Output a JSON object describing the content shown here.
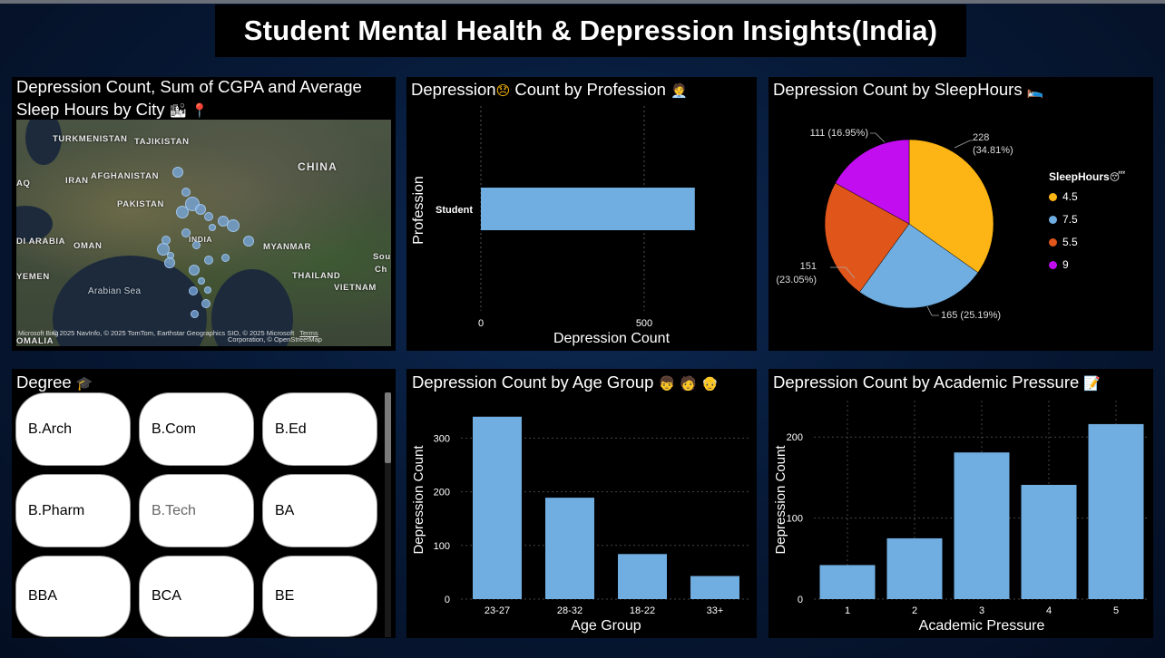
{
  "dashboard": {
    "title": "Student Mental Health & Depression Insights(India)"
  },
  "colors": {
    "bar": "#70ade0",
    "pie": [
      "#fdb515",
      "#70ade0",
      "#e0561a",
      "#c10df0"
    ]
  },
  "map_panel": {
    "title": "Depression Count, Sum of CGPA and Average Sleep Hours by City",
    "icons": [
      "cityscape-icon",
      "pin-icon"
    ],
    "labels": {
      "turkmenistan": "TURKMENISTAN",
      "tajikistan": "TAJIKISTAN",
      "china": "CHINA",
      "afghanistan": "AFGHANISTAN",
      "iraq": "AQ",
      "iran": "IRAN",
      "pakistan": "PAKISTAN",
      "saudi": "DI ARABIA",
      "oman": "OMAN",
      "india": "INDIA",
      "myanmar": "MYANMAR",
      "yemen": "YEMEN",
      "thailand": "THAILAND",
      "arabian_sea": "Arabian Sea",
      "vietnam": "VIETNAM",
      "somalia": "OMALIA",
      "south": "Sou",
      "south2": "Ch"
    },
    "credit_line1": "© 2025 NavInfo, © 2025 TomTom, Earthstar Geographics SIO, © 2025 Microsoft",
    "credit_terms": "Terms",
    "credit_line2": "Corporation, © OpenStreetMap",
    "bing_logo": "Microsoft Bing"
  },
  "profession_panel": {
    "title": "Depression",
    "title_rest": "Count by Profession",
    "icons": [
      "disappointed-face-icon",
      "office-worker-icon"
    ],
    "chart_data": {
      "type": "bar",
      "orientation": "horizontal",
      "categories": [
        "Student"
      ],
      "values": [
        655
      ],
      "xlabel": "Depression Count",
      "ylabel": "Profession",
      "xticks": [
        0,
        500
      ],
      "xlim": [
        0,
        1000
      ]
    }
  },
  "sleep_panel": {
    "title": "Depression Count by SleepHours",
    "icons": [
      "bed-icon"
    ],
    "chart_data": {
      "type": "pie",
      "legend_title": "SleepHours",
      "legend_position": "right",
      "slices": [
        {
          "label": "4.5",
          "value": 228,
          "pct": "(34.81%)"
        },
        {
          "label": "7.5",
          "value": 165,
          "pct": "(25.19%)"
        },
        {
          "label": "5.5",
          "value": 151,
          "pct": "(23.05%)"
        },
        {
          "label": "9",
          "value": 111,
          "pct": "(16.95%)"
        }
      ]
    },
    "labels": {
      "s0_value": "228",
      "s0_pct": "(34.81%)",
      "s1": "165 (25.19%)",
      "s2_value": "151",
      "s2_pct": "(23.05%)",
      "s3": "111 (16.95%)"
    }
  },
  "degree_panel": {
    "title": "Degree",
    "icons": [
      "graduation-cap-icon"
    ],
    "options": [
      "B.Arch",
      "B.Com",
      "B.Ed",
      "B.Pharm",
      "B.Tech",
      "BA",
      "BBA",
      "BCA",
      "BE"
    ]
  },
  "age_panel": {
    "title": "Depression Count by Age Group",
    "icons": [
      "child-icon",
      "adult-icon",
      "older-adult-icon"
    ],
    "chart_data": {
      "type": "bar",
      "categories": [
        "23-27",
        "28-32",
        "18-22",
        "33+"
      ],
      "values": [
        340,
        189,
        84,
        43
      ],
      "xlabel": "Age Group",
      "ylabel": "Depression Count",
      "yticks": [
        0,
        100,
        200,
        300
      ],
      "ylim": [
        0,
        370
      ]
    }
  },
  "pressure_panel": {
    "title": "Depression Count by Academic Pressure",
    "icons": [
      "memo-icon"
    ],
    "chart_data": {
      "type": "bar",
      "categories": [
        "1",
        "2",
        "3",
        "4",
        "5"
      ],
      "values": [
        42,
        75,
        181,
        141,
        216
      ],
      "xlabel": "Academic Pressure",
      "ylabel": "Depression Count",
      "yticks": [
        0,
        100,
        200
      ],
      "ylim": [
        0,
        245
      ]
    }
  }
}
